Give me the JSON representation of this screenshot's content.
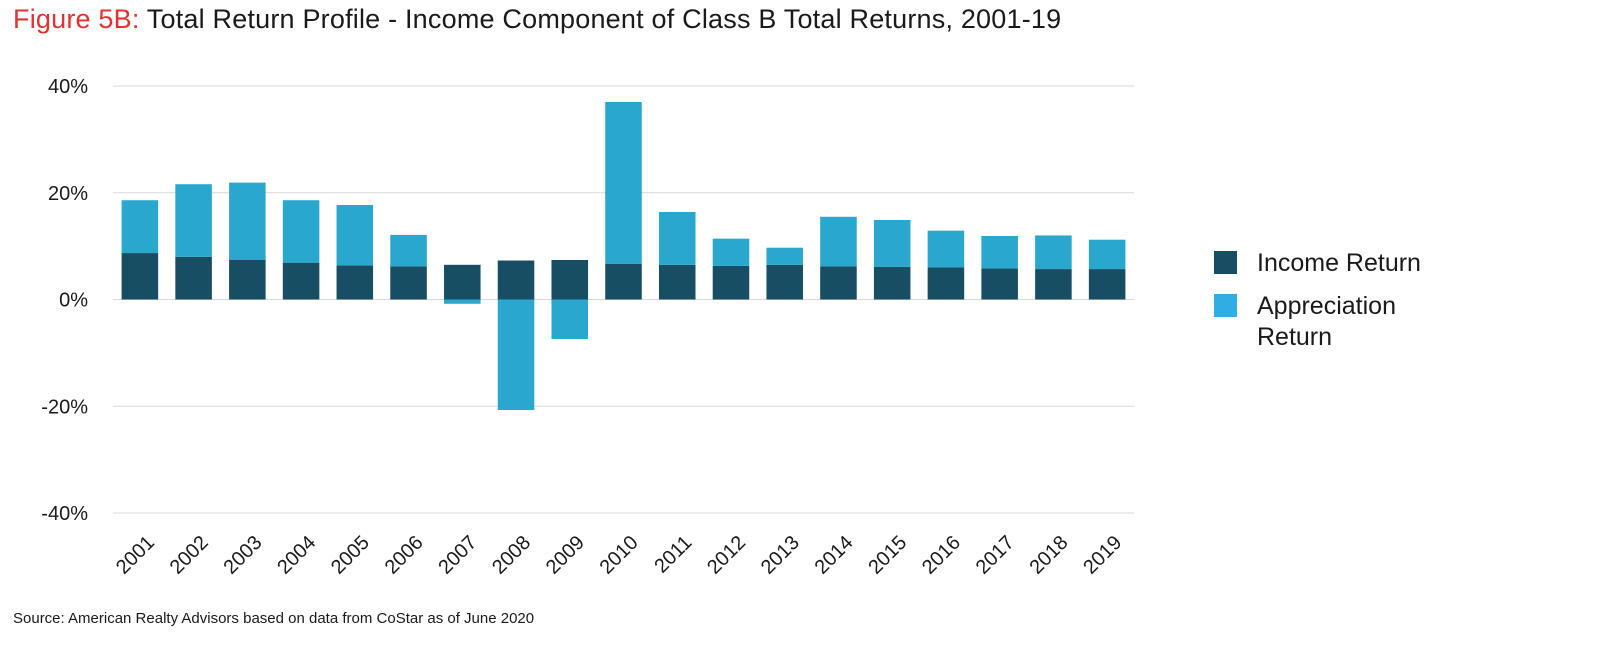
{
  "title": {
    "prefix": "Figure 5B:",
    "text": "Total Return Profile - Income Component of Class B Total Returns, 2001-19"
  },
  "legend": {
    "income": "Income Return",
    "appreciation": "Appreciation Return"
  },
  "colors": {
    "income": "#174e63",
    "appreciation": "#29a7cc",
    "appreciation_legend": "#2eaee2",
    "title_prefix": "#e0322f",
    "grid": "#d9d9d9"
  },
  "source": "Source: American Realty Advisors based on data from CoStar as of June 2020",
  "chart_data": {
    "type": "bar",
    "stacked": true,
    "categories": [
      "2001",
      "2002",
      "2003",
      "2004",
      "2005",
      "2006",
      "2007",
      "2008",
      "2009",
      "2010",
      "2011",
      "2012",
      "2013",
      "2014",
      "2015",
      "2016",
      "2017",
      "2018",
      "2019"
    ],
    "series": [
      {
        "name": "Income Return",
        "values": [
          8.7,
          8.0,
          7.4,
          6.9,
          6.4,
          6.2,
          6.5,
          7.3,
          7.4,
          6.7,
          6.5,
          6.3,
          6.5,
          6.2,
          6.1,
          6.0,
          5.8,
          5.7,
          5.7
        ]
      },
      {
        "name": "Appreciation Return",
        "values": [
          9.9,
          13.6,
          14.5,
          11.7,
          11.3,
          5.9,
          -0.8,
          -20.7,
          -7.4,
          30.3,
          9.9,
          5.1,
          3.2,
          9.3,
          8.8,
          6.9,
          6.1,
          6.3,
          5.5
        ]
      }
    ],
    "ylim": [
      -40,
      40
    ],
    "yticks": [
      -40,
      -20,
      0,
      20,
      40
    ],
    "ytick_labels": [
      "-40%",
      "-20%",
      "0%",
      "20%",
      "40%"
    ],
    "grid": true,
    "legend_position": "right",
    "xlabel": "",
    "ylabel": ""
  }
}
